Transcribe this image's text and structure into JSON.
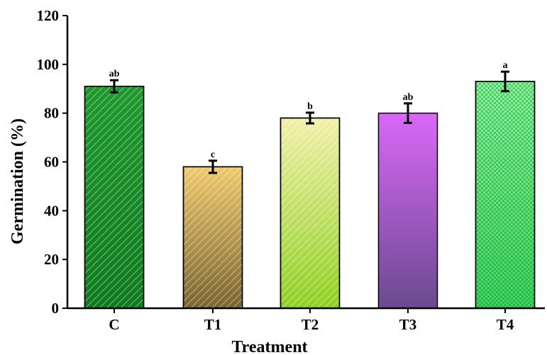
{
  "chart_data": {
    "type": "bar",
    "categories": [
      "C",
      "T1",
      "T2",
      "T3",
      "T4"
    ],
    "values": [
      91,
      58,
      78,
      80,
      93
    ],
    "errors": [
      2.5,
      2.5,
      2.2,
      4,
      4
    ],
    "significance": [
      "ab",
      "c",
      "b",
      "ab",
      "a"
    ],
    "xlabel": "Treatment",
    "ylabel": "Germination (%)",
    "ylim": [
      0,
      120
    ],
    "yticks": [
      0,
      20,
      40,
      60,
      80,
      100,
      120
    ],
    "grid": false,
    "bar_colors": [
      {
        "top": "#1e9a2e",
        "bottom": "#0f7a1e",
        "pattern": "diagonal-hatch"
      },
      {
        "top": "#efca6a",
        "bottom": "#7a6430",
        "pattern": "diagonal-hatch"
      },
      {
        "top": "#f2f0a8",
        "bottom": "#8ed020",
        "pattern": "diagonal-hatch"
      },
      {
        "top": "#d968f8",
        "bottom": "#6a4a8e",
        "pattern": "none"
      },
      {
        "top": "#8af59c",
        "bottom": "#3fd660",
        "pattern": "checker"
      }
    ]
  }
}
